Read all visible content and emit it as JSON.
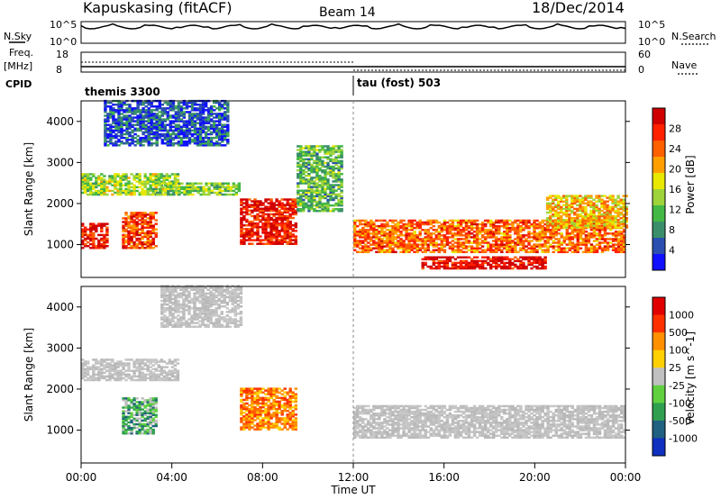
{
  "header": {
    "station": "Kapuskasing (fitACF)",
    "beam": "Beam 14",
    "date": "18/Dec/2014"
  },
  "noise_panel": {
    "left_label": "N.Sky",
    "right_label": "N.Search",
    "left_ticks": [
      "10^5",
      "10^0"
    ],
    "right_ticks": [
      "10^5",
      "10^0"
    ]
  },
  "freq_panel": {
    "left_label_1": "Freq.",
    "left_label_2": "[MHz]",
    "right_label": "Nave",
    "left_ticks": [
      "18",
      "8"
    ],
    "right_ticks": [
      "60",
      "0"
    ]
  },
  "cpid": {
    "label": "CPID",
    "left_program": "themis 3300",
    "right_program": "tau (fost) 503",
    "switch_time_hours": 12
  },
  "chart_data": [
    {
      "type": "heatmap",
      "panel": "power",
      "ylabel": "Slant Range [km]",
      "y_ticks": [
        1000,
        2000,
        3000,
        4000
      ],
      "ylim": [
        200,
        4500
      ],
      "xlim_hours": [
        0,
        24
      ],
      "colorbar_label": "Power [dB]",
      "colorbar_ticks": [
        "28",
        "24",
        "20",
        "16",
        "12",
        "8",
        "4"
      ],
      "color_scale": [
        "#1010ff",
        "#2a4fb0",
        "#3a8f6a",
        "#44b844",
        "#9ed43a",
        "#e8e800",
        "#ffa000",
        "#ff6000",
        "#ff2000",
        "#d00000"
      ],
      "echo_regions": [
        {
          "t": [
            0.0,
            4.3
          ],
          "r": [
            2200,
            2700
          ],
          "level": 0.45
        },
        {
          "t": [
            0.0,
            1.2
          ],
          "r": [
            900,
            1500
          ],
          "level": 0.9
        },
        {
          "t": [
            1.8,
            3.3
          ],
          "r": [
            900,
            1800
          ],
          "level": 0.8
        },
        {
          "t": [
            3.3,
            7.0
          ],
          "r": [
            2200,
            2500
          ],
          "level": 0.4
        },
        {
          "t": [
            7.0,
            9.5
          ],
          "r": [
            1000,
            2100
          ],
          "level": 0.9
        },
        {
          "t": [
            1.0,
            6.5
          ],
          "r": [
            3400,
            4500
          ],
          "level": 0.15
        },
        {
          "t": [
            9.5,
            11.5
          ],
          "r": [
            1800,
            3400
          ],
          "level": 0.35
        },
        {
          "t": [
            12.0,
            24.0
          ],
          "r": [
            800,
            1600
          ],
          "level": 0.75
        },
        {
          "t": [
            15.0,
            20.5
          ],
          "r": [
            400,
            700
          ],
          "level": 0.95
        },
        {
          "t": [
            20.5,
            24.0
          ],
          "r": [
            1400,
            2200
          ],
          "level": 0.6
        }
      ]
    },
    {
      "type": "heatmap",
      "panel": "velocity",
      "ylabel": "Slant Range [km]",
      "y_ticks": [
        1000,
        2000,
        3000,
        4000
      ],
      "ylim": [
        200,
        4500
      ],
      "xlim_hours": [
        0,
        24
      ],
      "colorbar_label": "Velocity [m s^-1]",
      "colorbar_ticks": [
        "1000",
        "500",
        "100",
        "25",
        "-25",
        "-100",
        "-500",
        "-1000"
      ],
      "color_scale": [
        "#1030c0",
        "#206080",
        "#30a050",
        "#60d040",
        "#c0c0c0",
        "#ffd000",
        "#ff9000",
        "#ff3000",
        "#e00000"
      ],
      "x_ticks": [
        "00:00",
        "04:00",
        "08:00",
        "12:00",
        "16:00",
        "20:00",
        "00:00"
      ],
      "xlabel": "Time UT",
      "echo_regions": [
        {
          "t": [
            0.0,
            4.3
          ],
          "r": [
            2200,
            2700
          ],
          "kind": "ground"
        },
        {
          "t": [
            1.8,
            3.3
          ],
          "r": [
            900,
            1800
          ],
          "kind": "positive"
        },
        {
          "t": [
            7.0,
            9.5
          ],
          "r": [
            1000,
            2000
          ],
          "kind": "negative"
        },
        {
          "t": [
            12.0,
            24.0
          ],
          "r": [
            800,
            1600
          ],
          "kind": "ground"
        },
        {
          "t": [
            3.5,
            7.0
          ],
          "r": [
            3500,
            4500
          ],
          "kind": "ground"
        }
      ]
    }
  ]
}
